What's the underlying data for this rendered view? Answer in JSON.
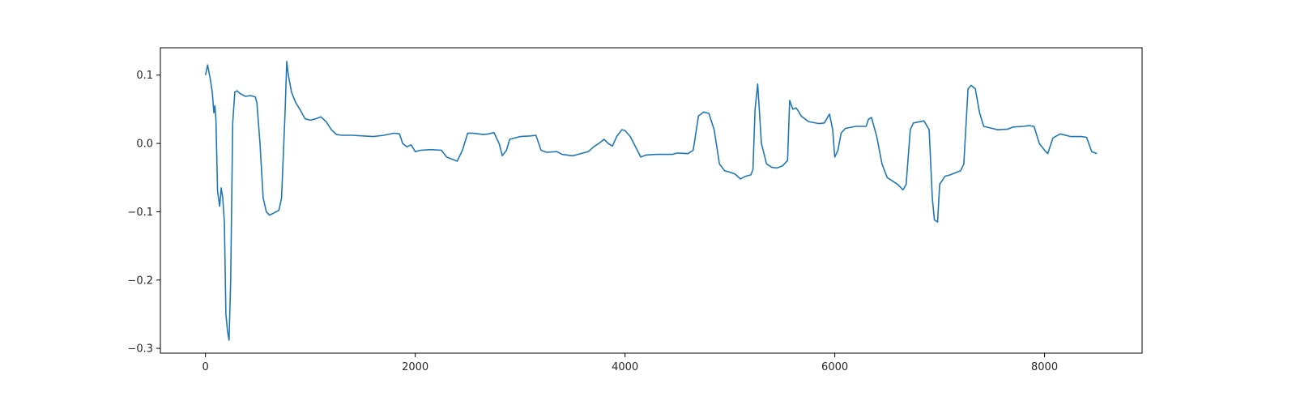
{
  "chart_data": {
    "type": "line",
    "title": "",
    "xlabel": "",
    "ylabel": "",
    "xlim": [
      -430,
      8930
    ],
    "ylim": [
      -0.307,
      0.14
    ],
    "grid": false,
    "legend": "none",
    "x_ticks": [
      0,
      2000,
      4000,
      6000,
      8000
    ],
    "x_tick_labels": [
      "0",
      "2000",
      "4000",
      "6000",
      "8000"
    ],
    "y_ticks": [
      0.1,
      0.0,
      -0.1,
      -0.2,
      -0.3
    ],
    "y_tick_labels": [
      "0.1",
      "0.0",
      "−0.1",
      "−0.2",
      "−0.3"
    ],
    "series": [
      {
        "color": "#1f77b4",
        "points": [
          [
            0,
            0.1
          ],
          [
            20,
            0.115
          ],
          [
            45,
            0.095
          ],
          [
            65,
            0.075
          ],
          [
            80,
            0.045
          ],
          [
            90,
            0.055
          ],
          [
            100,
            0.035
          ],
          [
            115,
            -0.07
          ],
          [
            135,
            -0.092
          ],
          [
            150,
            -0.065
          ],
          [
            165,
            -0.08
          ],
          [
            180,
            -0.115
          ],
          [
            195,
            -0.25
          ],
          [
            210,
            -0.275
          ],
          [
            225,
            -0.288
          ],
          [
            240,
            -0.2
          ],
          [
            260,
            0.03
          ],
          [
            280,
            0.075
          ],
          [
            300,
            0.077
          ],
          [
            330,
            0.073
          ],
          [
            380,
            0.069
          ],
          [
            430,
            0.07
          ],
          [
            475,
            0.068
          ],
          [
            490,
            0.06
          ],
          [
            520,
            0.0
          ],
          [
            550,
            -0.08
          ],
          [
            580,
            -0.1
          ],
          [
            610,
            -0.105
          ],
          [
            650,
            -0.102
          ],
          [
            700,
            -0.098
          ],
          [
            725,
            -0.08
          ],
          [
            760,
            0.05
          ],
          [
            775,
            0.12
          ],
          [
            790,
            0.1
          ],
          [
            820,
            0.075
          ],
          [
            860,
            0.06
          ],
          [
            900,
            0.05
          ],
          [
            950,
            0.036
          ],
          [
            1000,
            0.034
          ],
          [
            1050,
            0.036
          ],
          [
            1100,
            0.039
          ],
          [
            1150,
            0.032
          ],
          [
            1200,
            0.02
          ],
          [
            1250,
            0.013
          ],
          [
            1300,
            0.012
          ],
          [
            1400,
            0.012
          ],
          [
            1500,
            0.011
          ],
          [
            1600,
            0.01
          ],
          [
            1700,
            0.012
          ],
          [
            1800,
            0.015
          ],
          [
            1850,
            0.014
          ],
          [
            1880,
            0.0
          ],
          [
            1920,
            -0.005
          ],
          [
            1960,
            -0.002
          ],
          [
            2000,
            -0.012
          ],
          [
            2050,
            -0.01
          ],
          [
            2150,
            -0.009
          ],
          [
            2250,
            -0.01
          ],
          [
            2300,
            -0.02
          ],
          [
            2400,
            -0.026
          ],
          [
            2450,
            -0.01
          ],
          [
            2500,
            0.015
          ],
          [
            2550,
            0.015
          ],
          [
            2650,
            0.013
          ],
          [
            2700,
            0.014
          ],
          [
            2750,
            0.016
          ],
          [
            2800,
            0.0
          ],
          [
            2830,
            -0.018
          ],
          [
            2870,
            -0.01
          ],
          [
            2900,
            0.006
          ],
          [
            3000,
            0.01
          ],
          [
            3100,
            0.011
          ],
          [
            3150,
            0.012
          ],
          [
            3200,
            -0.01
          ],
          [
            3250,
            -0.013
          ],
          [
            3350,
            -0.012
          ],
          [
            3400,
            -0.016
          ],
          [
            3500,
            -0.018
          ],
          [
            3550,
            -0.016
          ],
          [
            3650,
            -0.012
          ],
          [
            3700,
            -0.005
          ],
          [
            3750,
            0.0
          ],
          [
            3800,
            0.006
          ],
          [
            3840,
            0.0
          ],
          [
            3880,
            -0.004
          ],
          [
            3920,
            0.01
          ],
          [
            3970,
            0.02
          ],
          [
            4000,
            0.019
          ],
          [
            4050,
            0.01
          ],
          [
            4100,
            -0.005
          ],
          [
            4150,
            -0.02
          ],
          [
            4200,
            -0.017
          ],
          [
            4300,
            -0.016
          ],
          [
            4450,
            -0.016
          ],
          [
            4500,
            -0.014
          ],
          [
            4600,
            -0.015
          ],
          [
            4650,
            -0.01
          ],
          [
            4700,
            0.04
          ],
          [
            4750,
            0.046
          ],
          [
            4800,
            0.044
          ],
          [
            4850,
            0.02
          ],
          [
            4900,
            -0.03
          ],
          [
            4950,
            -0.04
          ],
          [
            5000,
            -0.042
          ],
          [
            5050,
            -0.045
          ],
          [
            5100,
            -0.052
          ],
          [
            5150,
            -0.048
          ],
          [
            5200,
            -0.046
          ],
          [
            5220,
            -0.038
          ],
          [
            5240,
            0.05
          ],
          [
            5265,
            0.087
          ],
          [
            5280,
            0.05
          ],
          [
            5300,
            0.0
          ],
          [
            5350,
            -0.03
          ],
          [
            5400,
            -0.035
          ],
          [
            5450,
            -0.036
          ],
          [
            5500,
            -0.033
          ],
          [
            5550,
            -0.025
          ],
          [
            5570,
            0.063
          ],
          [
            5600,
            0.05
          ],
          [
            5630,
            0.052
          ],
          [
            5650,
            0.048
          ],
          [
            5680,
            0.04
          ],
          [
            5750,
            0.032
          ],
          [
            5850,
            0.029
          ],
          [
            5900,
            0.03
          ],
          [
            5950,
            0.043
          ],
          [
            5980,
            0.02
          ],
          [
            6000,
            -0.02
          ],
          [
            6030,
            -0.01
          ],
          [
            6060,
            0.015
          ],
          [
            6100,
            0.022
          ],
          [
            6200,
            0.025
          ],
          [
            6300,
            0.025
          ],
          [
            6320,
            0.035
          ],
          [
            6350,
            0.038
          ],
          [
            6400,
            0.01
          ],
          [
            6450,
            -0.03
          ],
          [
            6500,
            -0.05
          ],
          [
            6600,
            -0.06
          ],
          [
            6650,
            -0.068
          ],
          [
            6680,
            -0.06
          ],
          [
            6720,
            0.02
          ],
          [
            6750,
            0.03
          ],
          [
            6850,
            0.033
          ],
          [
            6900,
            0.02
          ],
          [
            6930,
            -0.08
          ],
          [
            6950,
            -0.112
          ],
          [
            6980,
            -0.115
          ],
          [
            7000,
            -0.06
          ],
          [
            7050,
            -0.048
          ],
          [
            7100,
            -0.046
          ],
          [
            7200,
            -0.04
          ],
          [
            7230,
            -0.03
          ],
          [
            7270,
            0.08
          ],
          [
            7300,
            0.085
          ],
          [
            7340,
            0.08
          ],
          [
            7380,
            0.045
          ],
          [
            7420,
            0.025
          ],
          [
            7500,
            0.022
          ],
          [
            7550,
            0.02
          ],
          [
            7650,
            0.021
          ],
          [
            7700,
            0.024
          ],
          [
            7800,
            0.025
          ],
          [
            7850,
            0.026
          ],
          [
            7900,
            0.025
          ],
          [
            7950,
            0.0
          ],
          [
            8000,
            -0.01
          ],
          [
            8030,
            -0.015
          ],
          [
            8080,
            0.008
          ],
          [
            8150,
            0.014
          ],
          [
            8250,
            0.01
          ],
          [
            8350,
            0.01
          ],
          [
            8400,
            0.009
          ],
          [
            8450,
            -0.012
          ],
          [
            8500,
            -0.015
          ]
        ]
      }
    ]
  }
}
